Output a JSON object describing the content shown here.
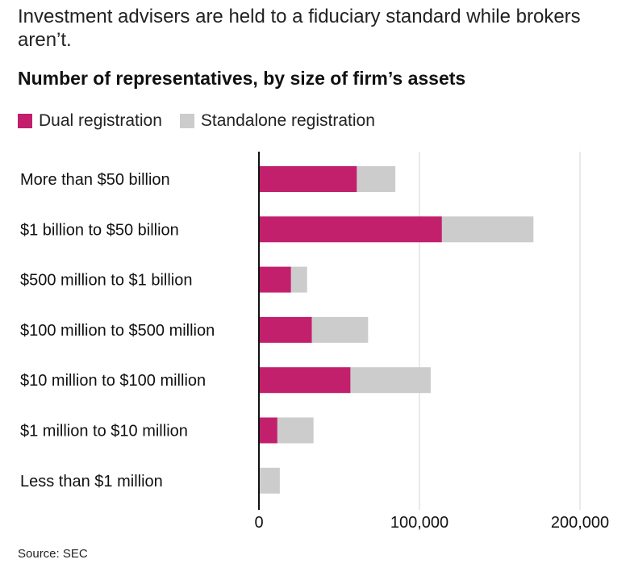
{
  "subtitle": "Investment advisers are held to a fiduciary standard while brokers aren’t.",
  "source": "Source: SEC",
  "chart_data": {
    "type": "bar",
    "orientation": "horizontal",
    "stacked": true,
    "title": "Number of representatives, by size of firm’s assets",
    "categories": [
      "More than $50 billion",
      "$1 billion to $50 billion",
      "$500 million to $1 billion",
      "$100 million to $500 million",
      "$10 million to $100 million",
      "$1 million to $10 million",
      "Less than $1 million"
    ],
    "series": [
      {
        "name": "Dual registration",
        "color": "#c2206d",
        "values": [
          61000,
          114000,
          20000,
          33000,
          57000,
          11500,
          500
        ]
      },
      {
        "name": "Standalone registration",
        "color": "#cccccc",
        "values": [
          24000,
          57000,
          10000,
          35000,
          50000,
          22500,
          12500
        ]
      }
    ],
    "xlim": [
      0,
      220000
    ],
    "xticks": [
      0,
      100000,
      200000
    ],
    "xtick_labels": [
      "0",
      "100,000",
      "200,000"
    ],
    "grid": true,
    "legend_position": "top-left"
  }
}
